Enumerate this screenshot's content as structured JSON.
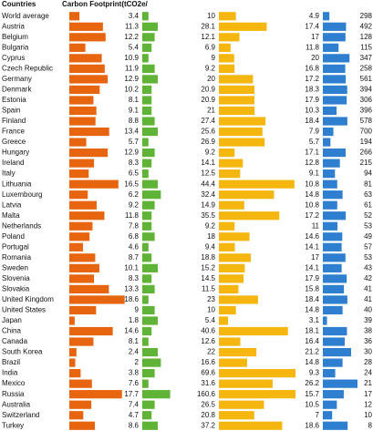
{
  "chart_data": {
    "type": "bar",
    "category_header": "Countries",
    "categories": [
      "World average",
      "Austria",
      "Belgium",
      "Bulgaria",
      "Cyprus",
      "Czech Republic",
      "Germany",
      "Denmark",
      "Estonia",
      "Spain",
      "Finland",
      "France",
      "Greece",
      "Hungary",
      "Ireland",
      "Italy",
      "Lithuania",
      "Luxembourg",
      "Latvia",
      "Malta",
      "Netherlands",
      "Poland",
      "Portugal",
      "Romania",
      "Sweden",
      "Slovenia",
      "Slovakia",
      "United Kingdom",
      "United States",
      "Japan",
      "China",
      "Canada",
      "South Korea",
      "Brazil",
      "India",
      "Mexico",
      "Russia",
      "Australia",
      "Switzerland",
      "Turkey"
    ],
    "series": [
      {
        "name": "Carbon Footprint(tCO2e/",
        "color": "#e8650f",
        "xlim": [
          0,
          19
        ],
        "values": [
          3.4,
          11.3,
          12.2,
          5.4,
          10.9,
          11.9,
          12.9,
          10.2,
          8.1,
          9.1,
          8.8,
          13.4,
          5.7,
          12.9,
          8.3,
          6.5,
          16.5,
          6.2,
          9.2,
          11.8,
          7.8,
          6.8,
          4.6,
          8.7,
          10.1,
          8.3,
          13.3,
          18.6,
          9.0,
          1.8,
          14.6,
          8.1,
          2.4,
          2.0,
          3.8,
          7.6,
          17.7,
          7.4,
          4.7,
          8.6
        ]
      },
      {
        "color": "#5fb336",
        "xlim": [
          0,
          10
        ],
        "values": [
          2,
          5,
          4,
          3,
          2,
          4,
          5,
          3,
          3,
          3,
          4,
          5,
          2,
          4,
          3,
          2,
          5,
          6,
          4,
          3,
          3,
          4,
          2,
          3,
          5,
          3,
          4,
          2,
          4,
          5,
          3,
          2,
          5,
          6,
          4,
          2,
          9,
          4,
          3,
          5
        ]
      },
      {
        "color": "#f5b70f",
        "xlim": [
          0,
          45
        ],
        "values": [
          10.0,
          28.1,
          12.1,
          6.9,
          9.0,
          9.2,
          20.0,
          20.9,
          20.9,
          21.0,
          27.4,
          25.6,
          26.9,
          9.2,
          14.1,
          12.5,
          44.4,
          32.4,
          14.9,
          35.5,
          9.2,
          18.0,
          9.4,
          18.8,
          15.2,
          14.5,
          11.5,
          23.0,
          10.0,
          5.4,
          40.6,
          12.6,
          22.0,
          16.6,
          69.6,
          31.6,
          160.6,
          26.5,
          20.8,
          37.2
        ]
      },
      {
        "color": "#2f7fd0",
        "xlim": [
          0,
          26
        ],
        "values": [
          4.9,
          17.4,
          17.0,
          11.8,
          20.0,
          16.8,
          17.2,
          18.3,
          17.9,
          10.3,
          18.4,
          7.9,
          5.7,
          17.1,
          12.8,
          9.1,
          10.8,
          14.8,
          10.8,
          17.2,
          11.0,
          14.6,
          14.1,
          17.0,
          14.1,
          17.9,
          15.8,
          18.4,
          14.8,
          3.1,
          18.1,
          16.4,
          21.2,
          14.8,
          9.3,
          26.2,
          15.7,
          10.5,
          7.0,
          18.6
        ]
      },
      {
        "values": [
          298,
          492,
          128,
          115,
          347,
          258,
          561,
          394,
          306,
          396,
          578,
          700,
          194,
          266,
          215,
          94,
          81,
          63,
          61,
          52,
          53,
          49,
          57,
          53,
          43,
          42,
          41,
          41,
          40,
          39,
          38,
          36,
          30,
          28,
          24,
          21,
          17,
          12,
          10,
          8
        ]
      }
    ]
  }
}
